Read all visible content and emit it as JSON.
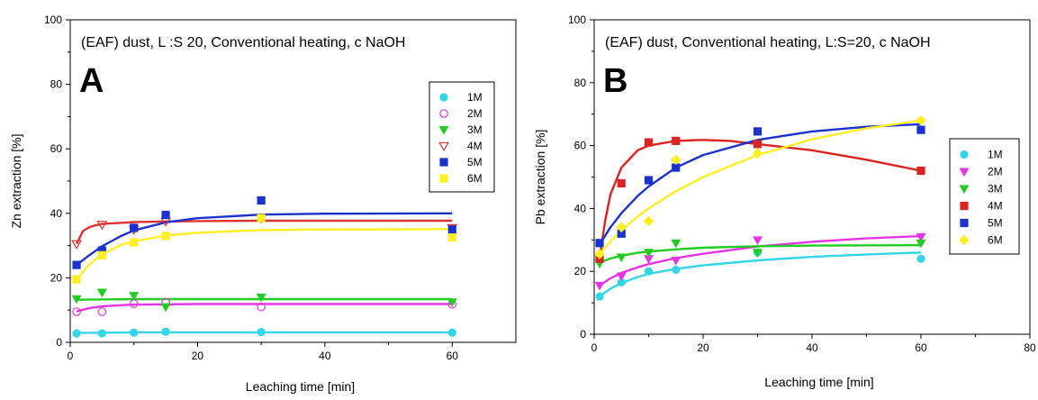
{
  "chart_data": [
    {
      "type": "scatter",
      "panel_label": "A",
      "title": "(EAF) dust, L :S 20, Conventional heating, c NaOH",
      "xlabel": "Leaching time [min]",
      "ylabel": "Zn extraction [%]",
      "xlim": [
        0,
        70
      ],
      "ylim": [
        0,
        100
      ],
      "xticks": [
        0,
        20,
        40,
        60
      ],
      "yticks": [
        0,
        20,
        40,
        60,
        80,
        100
      ],
      "grid": false,
      "legend_position": "top-right",
      "series": [
        {
          "name": "1M",
          "marker": "circle",
          "filled": true,
          "color": "#33d6e6",
          "x": [
            1,
            5,
            10,
            15,
            30,
            60
          ],
          "y": [
            2.8,
            2.8,
            3.0,
            3.3,
            3.2,
            3.0
          ],
          "fit_x": [
            1,
            5,
            10,
            15,
            20,
            30,
            40,
            60
          ],
          "fit_y": [
            2.9,
            3.0,
            3.1,
            3.1,
            3.1,
            3.1,
            3.1,
            3.1
          ]
        },
        {
          "name": "2M",
          "marker": "circle",
          "filled": false,
          "color": "#e633e6",
          "x": [
            1,
            5,
            10,
            15,
            30,
            60
          ],
          "y": [
            9.5,
            9.5,
            12.0,
            12.5,
            11.0,
            11.8
          ],
          "fit_x": [
            1,
            3,
            5,
            10,
            15,
            20,
            30,
            40,
            60
          ],
          "fit_y": [
            9.6,
            10.6,
            11.2,
            11.7,
            11.8,
            11.9,
            11.9,
            11.9,
            11.9
          ]
        },
        {
          "name": "3M",
          "marker": "triangle-down",
          "filled": true,
          "color": "#22cc22",
          "x": [
            1,
            5,
            10,
            15,
            30,
            60
          ],
          "y": [
            13.5,
            15.5,
            14.5,
            11.0,
            14.0,
            12.5
          ],
          "fit_x": [
            1,
            5,
            10,
            15,
            20,
            30,
            40,
            60
          ],
          "fit_y": [
            13.2,
            13.3,
            13.4,
            13.4,
            13.4,
            13.4,
            13.4,
            13.4
          ]
        },
        {
          "name": "4M",
          "marker": "triangle-down",
          "filled": false,
          "color": "#dd3333",
          "x": [
            1,
            5,
            10,
            15,
            30,
            60
          ],
          "y": [
            30.5,
            36.5,
            35.0,
            37.5,
            38.5,
            35.5
          ],
          "fit_x": [
            1,
            2,
            3,
            4,
            5,
            10,
            15,
            20,
            30,
            40,
            60
          ],
          "fit_y": [
            30.5,
            34.5,
            35.7,
            36.3,
            36.7,
            37.3,
            37.5,
            37.6,
            37.7,
            37.7,
            37.7
          ]
        },
        {
          "name": "5M",
          "marker": "square",
          "filled": true,
          "color": "#1a33cc",
          "x": [
            1,
            5,
            10,
            15,
            30,
            60
          ],
          "y": [
            24.0,
            28.5,
            35.5,
            39.5,
            44.0,
            35.0
          ],
          "fit_x": [
            1,
            3,
            5,
            8,
            10,
            15,
            20,
            30,
            40,
            60
          ],
          "fit_y": [
            24.0,
            27.0,
            29.8,
            33.0,
            34.7,
            37.2,
            38.5,
            39.6,
            39.9,
            40.0
          ]
        },
        {
          "name": "6M",
          "marker": "square",
          "filled": true,
          "color": "#ffee22",
          "x": [
            1,
            5,
            10,
            15,
            30,
            60
          ],
          "y": [
            19.5,
            27.0,
            31.0,
            33.0,
            38.5,
            32.5
          ],
          "fit_x": [
            1,
            3,
            5,
            8,
            10,
            15,
            20,
            30,
            40,
            60
          ],
          "fit_y": [
            19.5,
            24.2,
            27.3,
            30.2,
            31.3,
            33.1,
            34.0,
            34.8,
            35.0,
            35.1
          ]
        }
      ]
    },
    {
      "type": "scatter",
      "panel_label": "B",
      "title": "(EAF) dust, Conventional heating, L:S=20, c NaOH",
      "xlabel": "Leaching time [min]",
      "ylabel": "Pb extraction [%]",
      "xlim": [
        0,
        80
      ],
      "ylim": [
        0,
        100
      ],
      "xticks": [
        0,
        20,
        40,
        60,
        80
      ],
      "yticks": [
        0,
        20,
        40,
        60,
        80,
        100
      ],
      "grid": false,
      "legend_position": "right",
      "series": [
        {
          "name": "1M",
          "marker": "circle",
          "filled": true,
          "color": "#33d6e6",
          "x": [
            1,
            5,
            10,
            15,
            30,
            60
          ],
          "y": [
            12.0,
            16.5,
            20.0,
            20.5,
            26.0,
            24.0
          ],
          "fit_x": [
            1,
            3,
            5,
            8,
            10,
            15,
            20,
            30,
            40,
            50,
            60
          ],
          "fit_y": [
            12.0,
            14.5,
            16.3,
            18.2,
            19.2,
            20.8,
            21.9,
            23.5,
            24.6,
            25.4,
            26.0
          ]
        },
        {
          "name": "2M",
          "marker": "triangle-down",
          "filled": true,
          "color": "#e633e6",
          "x": [
            1,
            5,
            10,
            15,
            30,
            60
          ],
          "y": [
            15.5,
            18.5,
            24.0,
            23.5,
            30.0,
            31.0
          ],
          "fit_x": [
            1,
            3,
            5,
            8,
            10,
            15,
            20,
            30,
            40,
            50,
            60
          ],
          "fit_y": [
            15.5,
            17.8,
            19.5,
            21.3,
            22.3,
            24.2,
            25.6,
            27.9,
            29.4,
            30.5,
            31.2
          ]
        },
        {
          "name": "3M",
          "marker": "triangle-down",
          "filled": true,
          "color": "#22cc22",
          "x": [
            1,
            5,
            10,
            15,
            30,
            60
          ],
          "y": [
            22.5,
            24.5,
            26.0,
            29.0,
            26.0,
            29.0
          ],
          "fit_x": [
            1,
            3,
            5,
            8,
            10,
            15,
            20,
            30,
            40,
            60
          ],
          "fit_y": [
            22.8,
            24.1,
            25.0,
            25.9,
            26.3,
            27.0,
            27.5,
            28.0,
            28.2,
            28.3
          ]
        },
        {
          "name": "4M",
          "marker": "square",
          "filled": true,
          "color": "#dd2222",
          "x": [
            1,
            5,
            10,
            15,
            30,
            60
          ],
          "y": [
            24.0,
            48.0,
            61.0,
            61.5,
            60.5,
            52.0
          ],
          "fit_x": [
            1,
            2,
            3,
            5,
            8,
            10,
            15,
            20,
            25,
            30,
            40,
            50,
            60
          ],
          "fit_y": [
            24.0,
            36.0,
            44.5,
            53.0,
            58.5,
            60.0,
            61.5,
            61.8,
            61.5,
            60.5,
            58.5,
            55.5,
            52.0
          ]
        },
        {
          "name": "5M",
          "marker": "square",
          "filled": true,
          "color": "#1a33cc",
          "x": [
            1,
            5,
            10,
            15,
            30,
            60
          ],
          "y": [
            29.0,
            32.0,
            49.0,
            53.0,
            64.5,
            65.0
          ],
          "fit_x": [
            1,
            3,
            5,
            8,
            10,
            15,
            20,
            30,
            40,
            50,
            60
          ],
          "fit_y": [
            28.5,
            34.0,
            38.5,
            44.0,
            47.0,
            53.0,
            57.0,
            61.8,
            64.5,
            66.0,
            66.8
          ]
        },
        {
          "name": "6M",
          "marker": "diamond",
          "filled": true,
          "color": "#ffee22",
          "x": [
            1,
            5,
            10,
            15,
            30,
            60
          ],
          "y": [
            25.5,
            34.0,
            36.0,
            55.5,
            57.5,
            68.0
          ],
          "fit_x": [
            1,
            3,
            5,
            8,
            10,
            15,
            20,
            30,
            40,
            50,
            60
          ],
          "fit_y": [
            25.5,
            29.5,
            33.0,
            37.5,
            40.0,
            45.5,
            50.0,
            57.0,
            62.0,
            65.5,
            68.0
          ]
        }
      ]
    }
  ]
}
